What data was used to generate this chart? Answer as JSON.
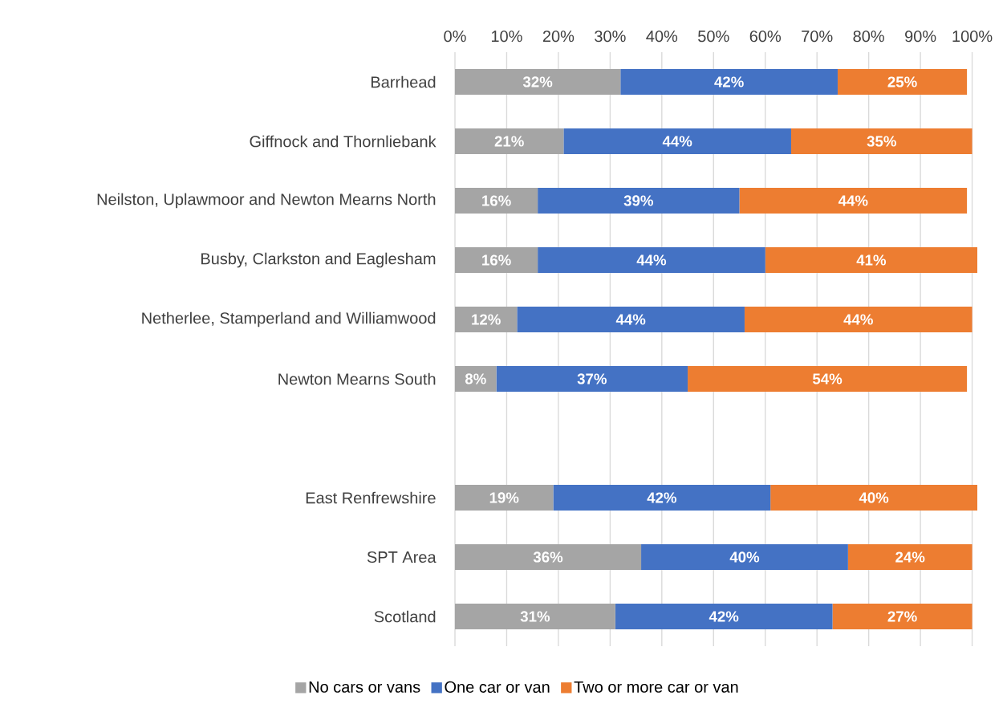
{
  "chart_data": {
    "type": "bar",
    "orientation": "horizontal",
    "stacked": true,
    "categories": [
      "Barrhead",
      "Giffnock and Thornliebank",
      "Neilston, Uplawmoor and Newton Mearns North",
      "Busby, Clarkston and Eaglesham",
      "Netherlee, Stamperland and Williamwood",
      "Newton Mearns South",
      null,
      "East Renfrewshire",
      "SPT Area",
      "Scotland"
    ],
    "series": [
      {
        "name": "No cars or vans",
        "color": "#a5a5a5",
        "values": [
          32,
          21,
          16,
          16,
          12,
          8,
          null,
          19,
          36,
          31
        ],
        "value_labels": [
          "32%",
          "21%",
          "16%",
          "16%",
          "12%",
          "8%",
          null,
          "19%",
          "36%",
          "31%"
        ]
      },
      {
        "name": "One car or van",
        "color": "#4472c4",
        "values": [
          42,
          44,
          39,
          44,
          44,
          37,
          null,
          42,
          40,
          42
        ],
        "value_labels": [
          "42%",
          "44%",
          "39%",
          "44%",
          "44%",
          "37%",
          null,
          "42%",
          "40%",
          "42%"
        ]
      },
      {
        "name": "Two or more car or van",
        "color": "#ed7d31",
        "values": [
          25,
          35,
          44,
          41,
          44,
          54,
          null,
          40,
          24,
          27
        ],
        "value_labels": [
          "25%",
          "35%",
          "44%",
          "41%",
          "44%",
          "54%",
          null,
          "40%",
          "24%",
          "27%"
        ]
      }
    ],
    "xlim": [
      0,
      101
    ],
    "xticks": [
      {
        "value": 0,
        "label": "0%"
      },
      {
        "value": 10,
        "label": "10%"
      },
      {
        "value": 20,
        "label": "20%"
      },
      {
        "value": 30,
        "label": "30%"
      },
      {
        "value": 40,
        "label": "40%"
      },
      {
        "value": 50,
        "label": "50%"
      },
      {
        "value": 60,
        "label": "60%"
      },
      {
        "value": 70,
        "label": "70%"
      },
      {
        "value": 80,
        "label": "80%"
      },
      {
        "value": 90,
        "label": "90%"
      },
      {
        "value": 100,
        "label": "100%"
      }
    ],
    "grid": "x",
    "legend": "bottom"
  }
}
